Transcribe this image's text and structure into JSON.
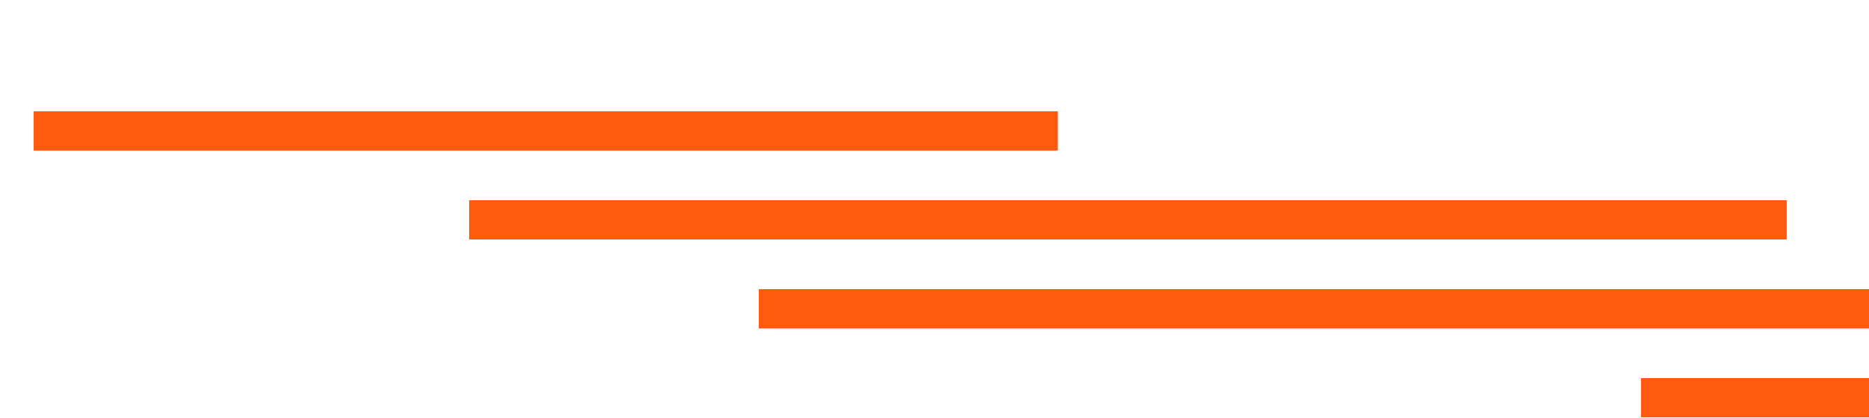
{
  "chart_data": {
    "type": "gantt",
    "title": "",
    "xlabel": "",
    "ylabel": "",
    "grid": false,
    "legend": "none",
    "xlim": [
      0,
      100
    ],
    "bar_color": "#FF5A0F",
    "bars": [
      {
        "start": 1.8,
        "end": 56.6
      },
      {
        "start": 25.1,
        "end": 95.6
      },
      {
        "start": 40.6,
        "end": 100
      },
      {
        "start": 87.8,
        "end": 100
      }
    ]
  }
}
